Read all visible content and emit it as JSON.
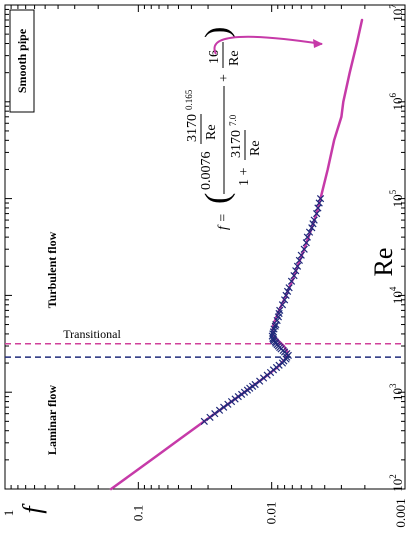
{
  "chart_data": {
    "type": "scatter",
    "orientation": "rotated-90-clockwise",
    "xlabel": "Re",
    "ylabel": "f",
    "xscale": "log",
    "yscale": "log",
    "xlim": [
      100,
      10000000
    ],
    "ylim": [
      0.001,
      1
    ],
    "x_tick_labels": [
      "10",
      "10",
      "10",
      "10",
      "10",
      "10"
    ],
    "x_tick_exponents": [
      "2",
      "3",
      "4",
      "5",
      "6",
      "7"
    ],
    "y_tick_labels": [
      "1",
      "0.1",
      "0.01",
      "0.001"
    ],
    "grid": false,
    "colors": {
      "fit": "#c63aa8",
      "data": "#1f2a7a",
      "transition_low": "#1f2a7a",
      "transition_high": "#d0409a"
    },
    "annotations": {
      "smooth_pipe": "Smooth pipe",
      "laminar": "Laminar flow",
      "transitional": "Transitional",
      "turbulent": "Turbulent flow"
    },
    "transition_lines": [
      2300,
      3170
    ],
    "equation": {
      "lhs": "f =",
      "c1": "0.0076",
      "n1": "3170",
      "d1": "Re",
      "e1": "0.165",
      "one_plus": "1 +",
      "n2": "3170",
      "d2": "Re",
      "e2": "7.0",
      "plus": "+",
      "n3": "16",
      "d3": "Re"
    },
    "series": [
      {
        "kind": "fit-curve",
        "x": [
          100,
          150,
          220,
          330,
          500,
          700,
          1000,
          1400,
          1800,
          2200,
          2600,
          3000,
          3400,
          4000,
          5000,
          7000,
          10000,
          15000,
          20000,
          30000,
          50000,
          70000,
          100000,
          200000,
          400000,
          700000,
          1000000,
          2000000,
          4000000,
          7000000
        ],
        "y": [
          0.16,
          0.1067,
          0.0727,
          0.0485,
          0.032,
          0.0229,
          0.016,
          0.0115,
          0.0091,
          0.0079,
          0.0076,
          0.0081,
          0.0089,
          0.0099,
          0.0097,
          0.0088,
          0.0078,
          0.0069,
          0.0064,
          0.0057,
          0.005,
          0.0046,
          0.0043,
          0.0038,
          0.0034,
          0.003,
          0.0029,
          0.0026,
          0.0023,
          0.0021
        ]
      },
      {
        "kind": "measurements",
        "x": [
          500,
          550,
          600,
          650,
          700,
          750,
          800,
          850,
          900,
          950,
          1000,
          1050,
          1100,
          1150,
          1200,
          1300,
          1400,
          1500,
          1600,
          1700,
          1800,
          1900,
          2000,
          2100,
          2200,
          2300,
          2400,
          2500,
          2600,
          2700,
          2800,
          2900,
          3000,
          3100,
          3200,
          3300,
          3400,
          3500,
          3600,
          3800,
          4000,
          4200,
          4500,
          4800,
          5000,
          5500,
          6000,
          6500,
          7000,
          8000,
          9000,
          10000,
          11000,
          12000,
          14000,
          16000,
          18000,
          20000,
          23000,
          26000,
          30000,
          35000,
          40000,
          45000,
          50000,
          55000,
          60000,
          70000,
          80000,
          90000,
          100000
        ],
        "y": [
          0.032,
          0.029,
          0.0267,
          0.0246,
          0.0229,
          0.0213,
          0.02,
          0.0188,
          0.0178,
          0.0168,
          0.016,
          0.0152,
          0.0146,
          0.0139,
          0.0133,
          0.0123,
          0.0115,
          0.0108,
          0.0102,
          0.0097,
          0.0092,
          0.0088,
          0.0083,
          0.0081,
          0.0078,
          0.0077,
          0.0075,
          0.0077,
          0.008,
          0.0082,
          0.0085,
          0.0087,
          0.0089,
          0.0091,
          0.0093,
          0.0094,
          0.0096,
          0.0097,
          0.0098,
          0.0099,
          0.0098,
          0.0097,
          0.0096,
          0.0094,
          0.0093,
          0.0091,
          0.0089,
          0.0088,
          0.0087,
          0.0083,
          0.008,
          0.0078,
          0.0076,
          0.0074,
          0.0071,
          0.0068,
          0.0066,
          0.0064,
          0.0062,
          0.006,
          0.0057,
          0.0055,
          0.0054,
          0.0052,
          0.005,
          0.0049,
          0.0048,
          0.0046,
          0.0045,
          0.0044,
          0.0043
        ]
      }
    ]
  }
}
